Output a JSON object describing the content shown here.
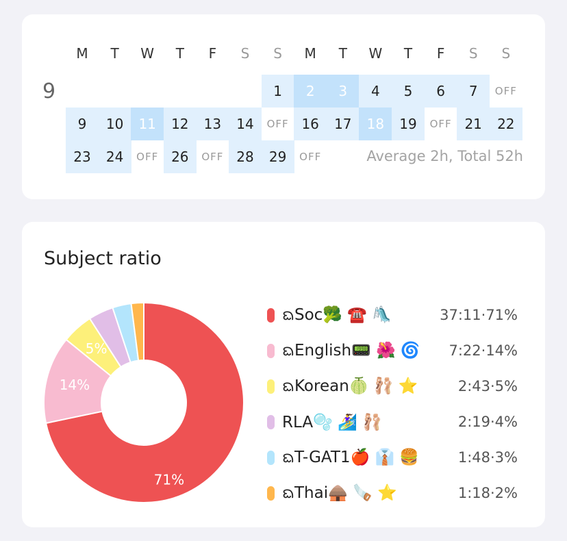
{
  "calendar": {
    "month_label": "9",
    "weekdays": [
      {
        "label": "M",
        "weekend": false
      },
      {
        "label": "T",
        "weekend": false
      },
      {
        "label": "W",
        "weekend": false
      },
      {
        "label": "T",
        "weekend": false
      },
      {
        "label": "F",
        "weekend": false
      },
      {
        "label": "S",
        "weekend": true
      },
      {
        "label": "S",
        "weekend": true
      },
      {
        "label": "M",
        "weekend": false
      },
      {
        "label": "T",
        "weekend": false
      },
      {
        "label": "W",
        "weekend": false
      },
      {
        "label": "T",
        "weekend": false
      },
      {
        "label": "F",
        "weekend": false
      },
      {
        "label": "S",
        "weekend": true
      },
      {
        "label": "S",
        "weekend": true
      }
    ],
    "weeks": [
      [
        null,
        null,
        null,
        null,
        null,
        null,
        {
          "t": "1",
          "lv": 1
        },
        {
          "t": "2",
          "lv": 2
        },
        {
          "t": "3",
          "lv": 2
        },
        {
          "t": "4",
          "lv": 1
        },
        {
          "t": "5",
          "lv": 1
        },
        {
          "t": "6",
          "lv": 1
        },
        {
          "t": "7",
          "lv": 1
        },
        {
          "t": "OFF",
          "lv": 0
        }
      ],
      [
        {
          "t": "9",
          "lv": 1
        },
        {
          "t": "10",
          "lv": 1
        },
        {
          "t": "11",
          "lv": 2
        },
        {
          "t": "12",
          "lv": 1
        },
        {
          "t": "13",
          "lv": 1
        },
        {
          "t": "14",
          "lv": 1
        },
        {
          "t": "OFF",
          "lv": 0
        },
        {
          "t": "16",
          "lv": 1
        },
        {
          "t": "17",
          "lv": 1
        },
        {
          "t": "18",
          "lv": 2
        },
        {
          "t": "19",
          "lv": 1
        },
        {
          "t": "OFF",
          "lv": 0
        },
        {
          "t": "21",
          "lv": 1
        },
        {
          "t": "22",
          "lv": 1
        }
      ],
      [
        {
          "t": "23",
          "lv": 1
        },
        {
          "t": "24",
          "lv": 1
        },
        {
          "t": "OFF",
          "lv": 0
        },
        {
          "t": "26",
          "lv": 1
        },
        {
          "t": "OFF",
          "lv": 0
        },
        {
          "t": "28",
          "lv": 1
        },
        {
          "t": "29",
          "lv": 1
        },
        {
          "t": "OFF",
          "lv": 0
        },
        null,
        null,
        null,
        null,
        null,
        null
      ]
    ],
    "summary": "Average 2h, Total 52h",
    "colors": {
      "level1": "#e1f0fd",
      "level2": "#c3e2fb"
    }
  },
  "ratio": {
    "title": "Subject ratio",
    "subjects": [
      {
        "name": "ᨳSoc🥦 ☎️ 🛝",
        "value": "37:11·71%",
        "percent": 71,
        "color": "#ee5253"
      },
      {
        "name": "ᨳEnglish📟 🌺 🌀",
        "value": "7:22·14%",
        "percent": 14,
        "color": "#f8bbd0"
      },
      {
        "name": "ᨳKorean🍈 🩰 ⭐",
        "value": "2:43·5%",
        "percent": 5,
        "color": "#fdf07a"
      },
      {
        "name": "RLA🫧 🏄‍♀️ 🩰",
        "value": "2:19·4%",
        "percent": 4,
        "color": "#e1bee7"
      },
      {
        "name": "ᨳT-GAT1🍎 👔 🍔",
        "value": "1:48·3%",
        "percent": 3,
        "color": "#b3e5fc"
      },
      {
        "name": "ᨳThai🛖 🪚 ⭐",
        "value": "1:18·2%",
        "percent": 2,
        "color": "#ffb74d"
      }
    ],
    "slice_labels": [
      "71%",
      "14%",
      "5%"
    ]
  }
}
